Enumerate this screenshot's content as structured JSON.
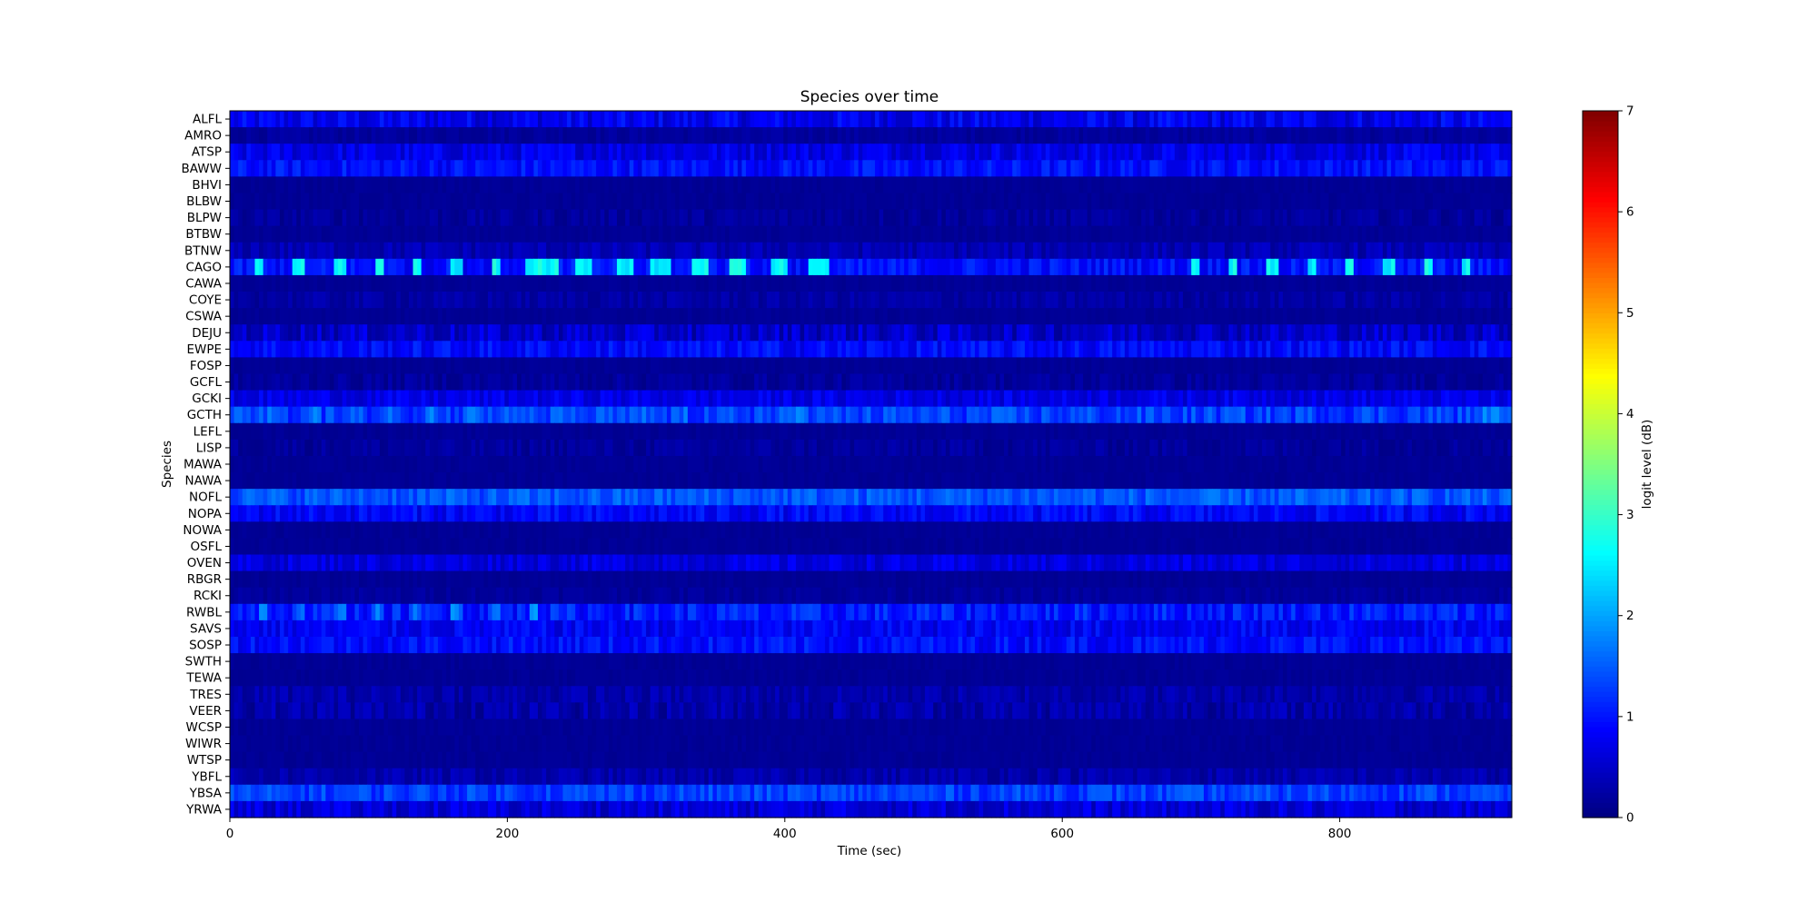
{
  "chart_data": {
    "type": "heatmap",
    "title": "Species over time",
    "xlabel": "Time (sec)",
    "ylabel": "Species",
    "xlim": [
      0,
      924
    ],
    "x_ticks": [
      0,
      200,
      400,
      600,
      800
    ],
    "colorbar": {
      "label": "logit level (dB)",
      "range": [
        0,
        7
      ],
      "ticks": [
        0,
        1,
        2,
        3,
        4,
        5,
        6,
        7
      ],
      "colormap": "jet"
    },
    "species": [
      "ALFL",
      "AMRO",
      "ATSP",
      "BAWW",
      "BHVI",
      "BLBW",
      "BLPW",
      "BTBW",
      "BTNW",
      "CAGO",
      "CAWA",
      "COYE",
      "CSWA",
      "DEJU",
      "EWPE",
      "FOSP",
      "GCFL",
      "GCKI",
      "GCTH",
      "LEFL",
      "LISP",
      "MAWA",
      "NAWA",
      "NOFL",
      "NOPA",
      "NOWA",
      "OSFL",
      "OVEN",
      "RBGR",
      "RCKI",
      "RWBL",
      "SAVS",
      "SOSP",
      "SWTH",
      "TEWA",
      "TRES",
      "VEER",
      "WCSP",
      "WIWR",
      "WTSP",
      "YBFL",
      "YBSA",
      "YRWA"
    ],
    "time_bin_sec": 3,
    "profiles": {
      "ALFL": {
        "base": 0.75,
        "var": 0.35
      },
      "AMRO": {
        "base": 0.2,
        "var": 0.1
      },
      "ATSP": {
        "base": 0.7,
        "var": 0.3
      },
      "BAWW": {
        "base": 0.95,
        "var": 0.3
      },
      "BHVI": {
        "base": 0.15,
        "var": 0.05
      },
      "BLBW": {
        "base": 0.15,
        "var": 0.05
      },
      "BLPW": {
        "base": 0.2,
        "var": 0.15
      },
      "BTBW": {
        "base": 0.15,
        "var": 0.05
      },
      "BTNW": {
        "base": 0.35,
        "var": 0.2
      },
      "CAGO": {
        "base": 0.95,
        "var": 0.3
      },
      "CAWA": {
        "base": 0.15,
        "var": 0.05
      },
      "COYE": {
        "base": 0.25,
        "var": 0.15
      },
      "CSWA": {
        "base": 0.15,
        "var": 0.05
      },
      "DEJU": {
        "base": 0.5,
        "var": 0.35
      },
      "EWPE": {
        "base": 0.9,
        "var": 0.3
      },
      "FOSP": {
        "base": 0.15,
        "var": 0.05
      },
      "GCFL": {
        "base": 0.2,
        "var": 0.15
      },
      "GCKI": {
        "base": 0.7,
        "var": 0.25
      },
      "GCTH": {
        "base": 1.3,
        "var": 0.35
      },
      "LEFL": {
        "base": 0.15,
        "var": 0.05
      },
      "LISP": {
        "base": 0.2,
        "var": 0.15
      },
      "MAWA": {
        "base": 0.15,
        "var": 0.05
      },
      "NAWA": {
        "base": 0.15,
        "var": 0.05
      },
      "NOFL": {
        "base": 1.45,
        "var": 0.3
      },
      "NOPA": {
        "base": 0.85,
        "var": 0.3
      },
      "NOWA": {
        "base": 0.15,
        "var": 0.05
      },
      "OSFL": {
        "base": 0.15,
        "var": 0.05
      },
      "OVEN": {
        "base": 0.65,
        "var": 0.25
      },
      "RBGR": {
        "base": 0.15,
        "var": 0.05
      },
      "RCKI": {
        "base": 0.2,
        "var": 0.1
      },
      "RWBL": {
        "base": 1.05,
        "var": 0.35
      },
      "SAVS": {
        "base": 0.8,
        "var": 0.3
      },
      "SOSP": {
        "base": 0.95,
        "var": 0.3
      },
      "SWTH": {
        "base": 0.15,
        "var": 0.05
      },
      "TEWA": {
        "base": 0.15,
        "var": 0.05
      },
      "TRES": {
        "base": 0.3,
        "var": 0.2
      },
      "VEER": {
        "base": 0.3,
        "var": 0.25
      },
      "WCSP": {
        "base": 0.15,
        "var": 0.05
      },
      "WIWR": {
        "base": 0.15,
        "var": 0.05
      },
      "WTSP": {
        "base": 0.15,
        "var": 0.05
      },
      "YBFL": {
        "base": 0.3,
        "var": 0.2
      },
      "YBSA": {
        "base": 1.3,
        "var": 0.3
      },
      "YRWA": {
        "base": 0.6,
        "var": 0.3
      }
    },
    "peaks": [
      {
        "species": "CAGO",
        "times": [
          20,
          48,
          78,
          106,
          134,
          162,
          190,
          214,
          220,
          226,
          232,
          250,
          256,
          280,
          286,
          306,
          312,
          334,
          340,
          362,
          368,
          392,
          398,
          420,
          426,
          695,
          722,
          750,
          778,
          806,
          834,
          862,
          890
        ],
        "value": 2.9
      },
      {
        "species": "GCTH",
        "times": [
          5,
          30,
          60,
          88,
          116,
          144,
          172,
          200,
          240,
          268,
          296,
          324,
          352,
          380,
          408,
          900,
          910,
          918
        ],
        "value": 1.9
      },
      {
        "species": "RWBL",
        "times": [
          22,
          50,
          78,
          106,
          134,
          162,
          190,
          218
        ],
        "value": 2.0
      }
    ]
  }
}
